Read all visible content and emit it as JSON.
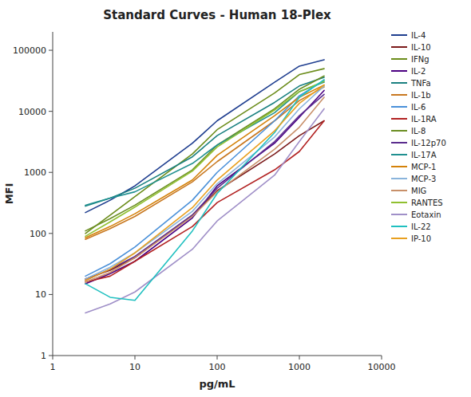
{
  "chart_data": {
    "type": "line",
    "title": "Standard Curves - Human 18-Plex",
    "xlabel": "pg/mL",
    "ylabel": "MFI",
    "log": true,
    "grid": false,
    "legend": "right",
    "xlim": [
      1,
      10000
    ],
    "ylim": [
      1,
      200000
    ],
    "xticks": [
      1,
      10,
      100,
      1000,
      10000
    ],
    "yticks": [
      1,
      10,
      100,
      1000,
      10000,
      100000
    ],
    "x": [
      2.5,
      5,
      10,
      50,
      100,
      500,
      1000,
      2000
    ],
    "series": [
      {
        "name": "IL-4",
        "color": "#1F3E8F",
        "values": [
          220,
          350,
          600,
          3000,
          7000,
          30000,
          55000,
          70000
        ]
      },
      {
        "name": "IL-10",
        "color": "#7B1A1A",
        "values": [
          18,
          25,
          40,
          200,
          500,
          2000,
          4000,
          7000
        ]
      },
      {
        "name": "IFNg",
        "color": "#6B8C1A",
        "values": [
          100,
          200,
          400,
          2000,
          5000,
          20000,
          40000,
          50000
        ]
      },
      {
        "name": "IL-2",
        "color": "#4B0082",
        "values": [
          15,
          22,
          35,
          180,
          600,
          3000,
          8000,
          22000
        ]
      },
      {
        "name": "TNFa",
        "color": "#1A8080",
        "values": [
          280,
          380,
          550,
          1800,
          4000,
          14000,
          26000,
          36000
        ]
      },
      {
        "name": "IL-1b",
        "color": "#C87820",
        "values": [
          80,
          120,
          190,
          700,
          1500,
          7000,
          15000,
          25000
        ]
      },
      {
        "name": "IL-6",
        "color": "#4A90D9",
        "values": [
          20,
          32,
          60,
          350,
          1000,
          7000,
          18000,
          32000
        ]
      },
      {
        "name": "IL-1RA",
        "color": "#B22222",
        "values": [
          16,
          20,
          35,
          130,
          320,
          1100,
          2200,
          7000
        ]
      },
      {
        "name": "IL-8",
        "color": "#6B8E23",
        "values": [
          110,
          175,
          290,
          1100,
          2800,
          11000,
          23000,
          38000
        ]
      },
      {
        "name": "IL-12p70",
        "color": "#5B2D8E",
        "values": [
          17,
          26,
          42,
          200,
          550,
          3200,
          8500,
          19000
        ]
      },
      {
        "name": "IL-17A",
        "color": "#209090",
        "values": [
          290,
          380,
          480,
          1400,
          2800,
          9500,
          21000,
          30000
        ]
      },
      {
        "name": "MCP-1",
        "color": "#D4820A",
        "values": [
          85,
          130,
          210,
          750,
          1900,
          8500,
          17000,
          27000
        ]
      },
      {
        "name": "MCP-3",
        "color": "#8AB4DC",
        "values": [
          18,
          28,
          48,
          230,
          650,
          3800,
          11000,
          26000
        ]
      },
      {
        "name": "MIG",
        "color": "#C8906A",
        "values": [
          16,
          23,
          40,
          190,
          480,
          2400,
          5500,
          17000
        ]
      },
      {
        "name": "RANTES",
        "color": "#90C030",
        "values": [
          90,
          155,
          270,
          1050,
          2600,
          10500,
          21000,
          31000
        ]
      },
      {
        "name": "Eotaxin",
        "color": "#A090C8",
        "values": [
          5,
          7,
          11,
          55,
          160,
          900,
          3200,
          11000
        ]
      },
      {
        "name": "IL-22",
        "color": "#20C0C0",
        "values": [
          15,
          9,
          8,
          110,
          450,
          4500,
          17000,
          33000
        ]
      },
      {
        "name": "IP-10",
        "color": "#E8A020",
        "values": [
          17,
          26,
          48,
          265,
          750,
          4800,
          13500,
          27000
        ]
      }
    ]
  }
}
